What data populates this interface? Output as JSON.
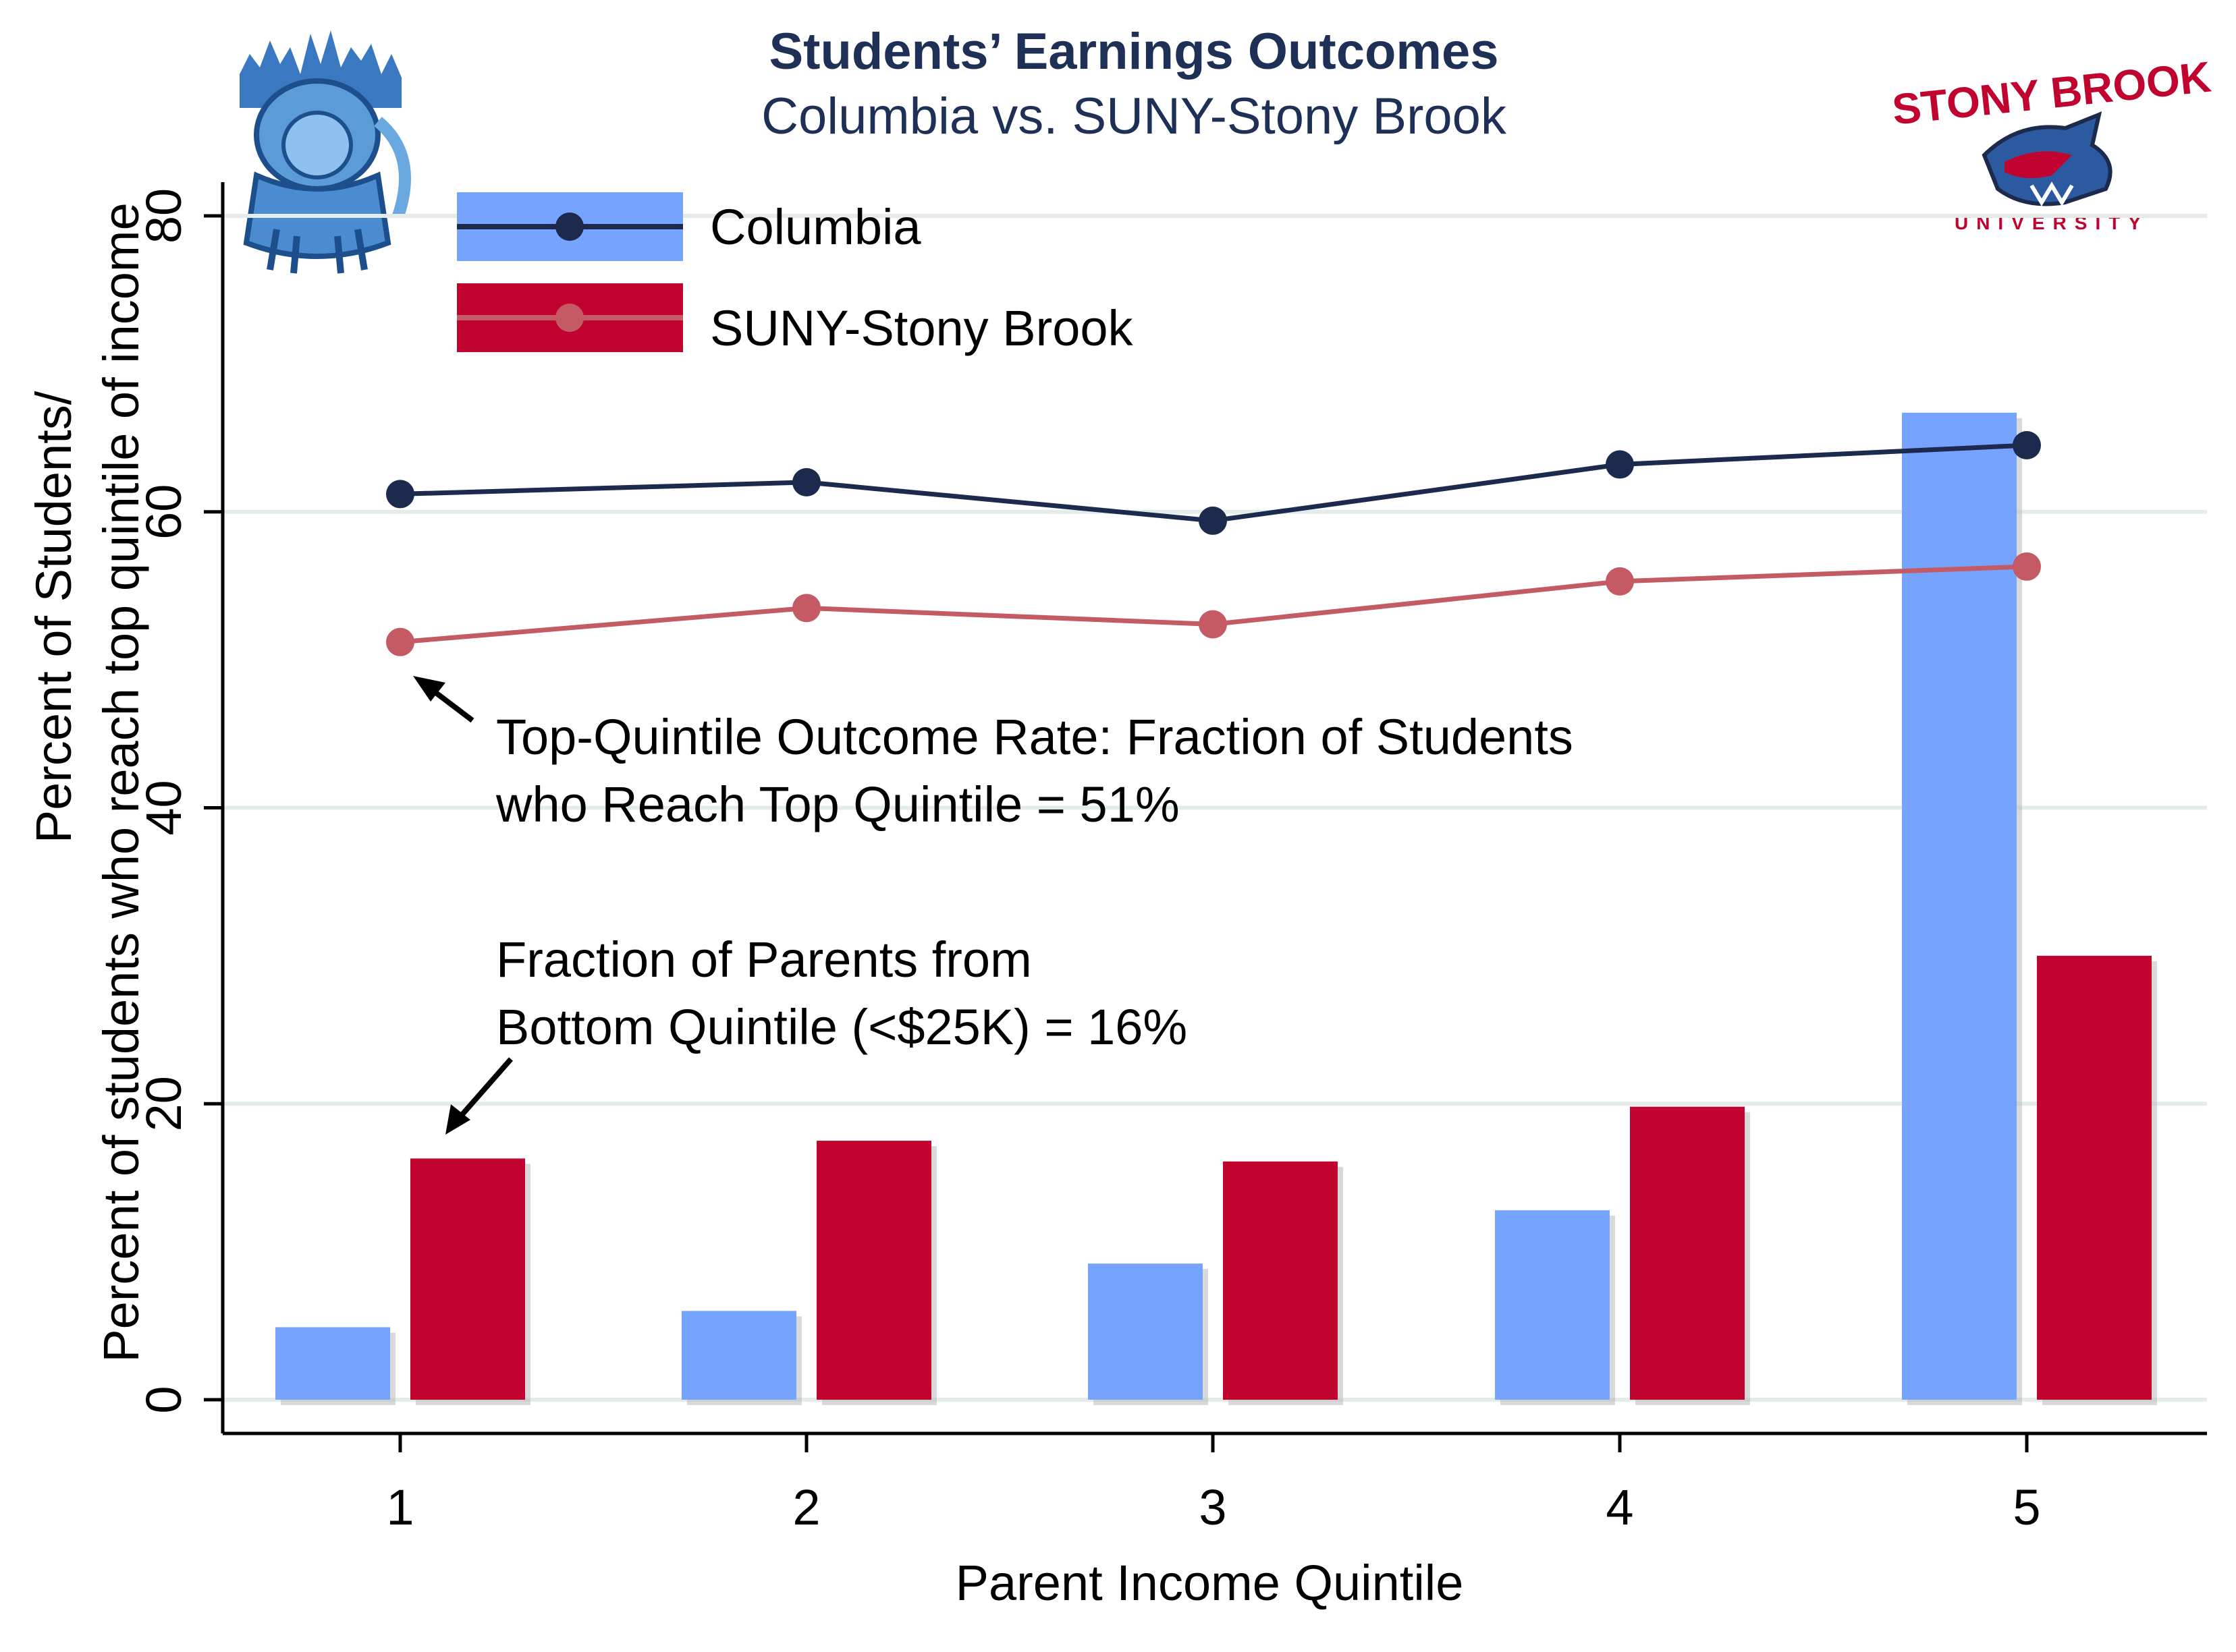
{
  "chart_data": {
    "type": "bar",
    "title": "Students’ Earnings Outcomes",
    "subtitle": "Columbia vs. SUNY-Stony Brook",
    "xlabel": "Parent Income Quintile",
    "ylabel_lines": [
      "Percent of Students/",
      "Percent of students who reach top quintile of income"
    ],
    "categories": [
      "1",
      "2",
      "3",
      "4",
      "5"
    ],
    "ylim": [
      0,
      80
    ],
    "yticks": [
      "0",
      "20",
      "40",
      "60",
      "80"
    ],
    "grid": true,
    "legend_position": "top-left",
    "series": [
      {
        "name": "Columbia",
        "role": "bar",
        "color": "#76a3fd",
        "values": [
          4.9,
          6.0,
          9.2,
          12.8,
          66.7
        ]
      },
      {
        "name": "SUNY-Stony Brook",
        "role": "bar",
        "color": "#c0042f",
        "values": [
          16.3,
          17.5,
          16.1,
          19.8,
          30.0
        ]
      },
      {
        "name": "Columbia",
        "role": "line",
        "color": "#1c2a4d",
        "values": [
          61.2,
          62.0,
          59.4,
          63.2,
          64.5
        ]
      },
      {
        "name": "SUNY-Stony Brook",
        "role": "line",
        "color": "#c45a64",
        "values": [
          51.2,
          53.5,
          52.4,
          55.3,
          56.3
        ]
      }
    ],
    "annotations": [
      {
        "lines": [
          "Top-Quintile Outcome Rate: Fraction of Students",
          "who Reach Top Quintile = 51%"
        ],
        "points_to": "SUNY-Stony Brook line at quintile 1"
      },
      {
        "lines": [
          "Fraction of Parents from",
          "Bottom Quintile (<$25K) = 16%"
        ],
        "points_to": "SUNY-Stony Brook bar at quintile 1"
      }
    ]
  },
  "logos": {
    "left": "Columbia lion logo",
    "right_text_top": "STONY BROOK",
    "right_text_bottom": "UNIVERSITY"
  }
}
